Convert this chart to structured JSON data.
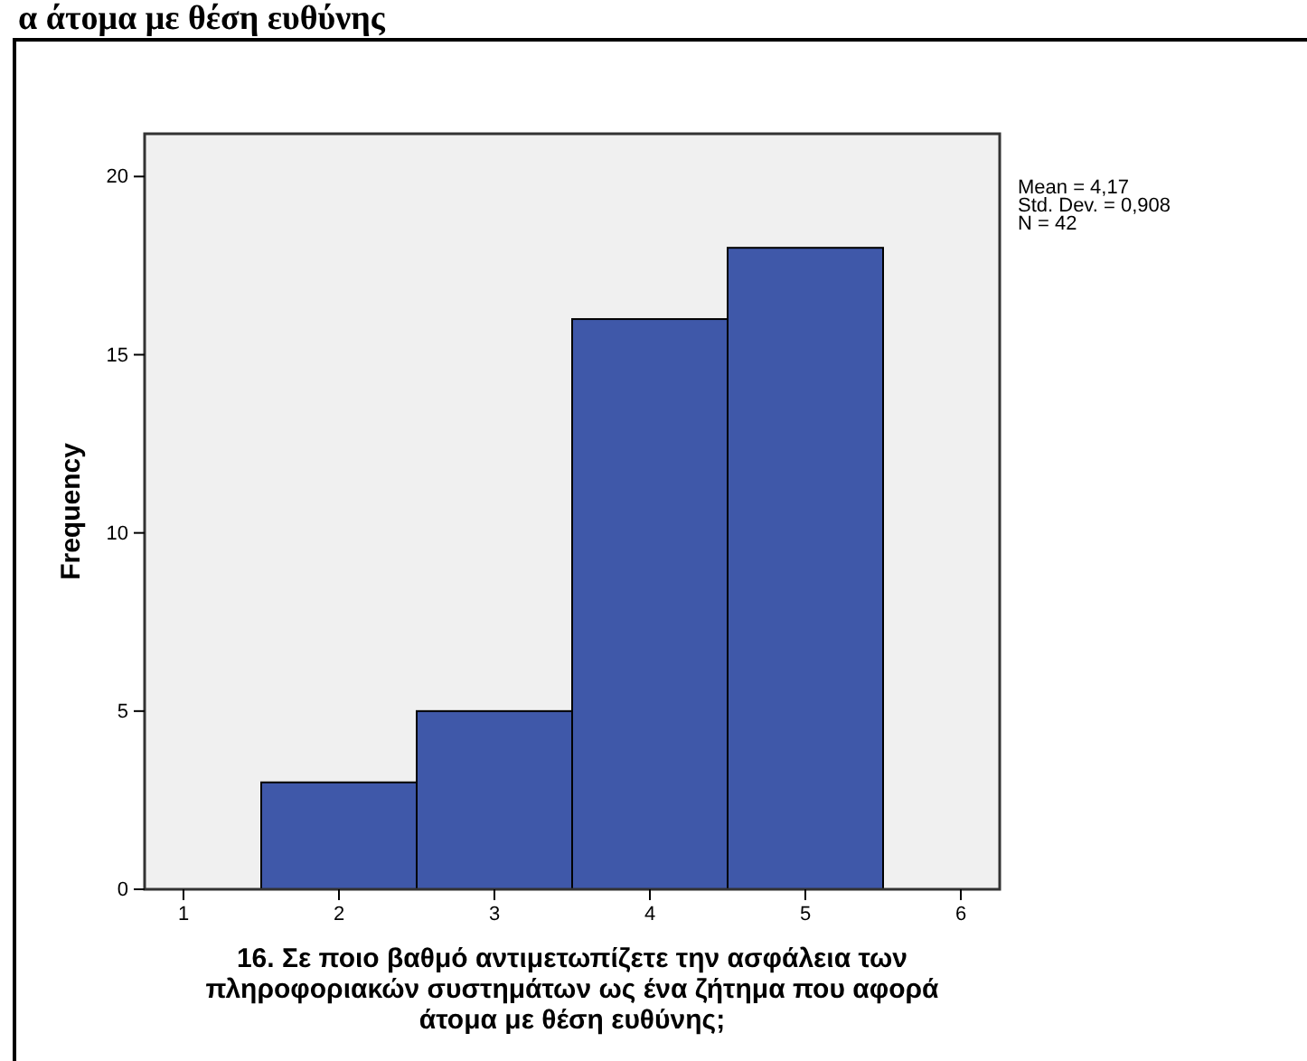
{
  "chart_data": {
    "type": "histogram",
    "title": "α άτομα με θέση ευθύνης",
    "bins": [
      1.5,
      2.5,
      3.5,
      4.5,
      5.5
    ],
    "values": [
      3,
      5,
      16,
      18
    ],
    "color": "#3f58a9",
    "xlim": [
      0.75,
      6.25
    ],
    "xticks": [
      1,
      2,
      3,
      4,
      5,
      6
    ],
    "ylim": [
      0,
      21.2
    ],
    "yticks": [
      0,
      5,
      10,
      15,
      20
    ],
    "ylabel": "Frequency",
    "xlabel": "16.  Σε ποιο βαθμό αντιμετωπίζετε την ασφάλεια των πληροφοριακών συστημάτων ως ένα ζήτημα που αφορά άτομα με θέση ευθύνης;",
    "annotations": [
      "Mean = 4,17",
      "Std. Dev. = 0,908",
      "N = 42"
    ]
  }
}
